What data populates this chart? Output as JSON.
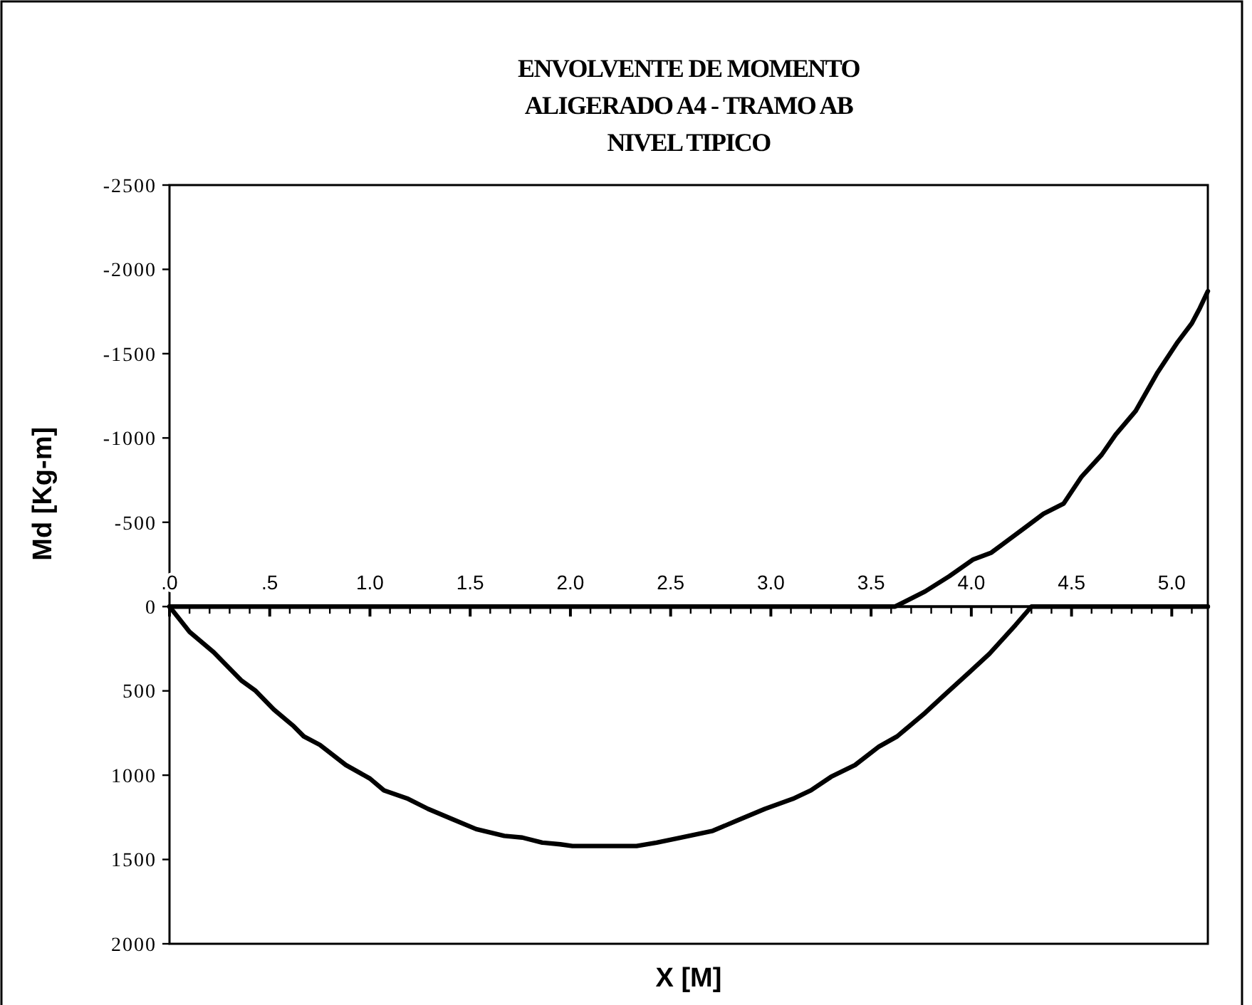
{
  "chart_data": {
    "type": "line",
    "title": "ENVOLVENTE DE MOMENTO\nALIGERADO A4 - TRAMO AB\nNIVEL TIPICO",
    "xlabel": "X [M]",
    "ylabel": "Md [Kg-m]",
    "xlim": [
      0,
      5.18
    ],
    "ylim": [
      2000,
      -2500
    ],
    "xticks": [
      {
        "value": 0,
        "label": ".0"
      },
      {
        "value": 0.1,
        "label": null
      },
      {
        "value": 0.2,
        "label": null
      },
      {
        "value": 0.3,
        "label": null
      },
      {
        "value": 0.4,
        "label": null
      },
      {
        "value": 0.5,
        "label": ".5"
      },
      {
        "value": 0.6,
        "label": null
      },
      {
        "value": 0.7,
        "label": null
      },
      {
        "value": 0.8,
        "label": null
      },
      {
        "value": 0.9,
        "label": null
      },
      {
        "value": 1,
        "label": "1.0"
      },
      {
        "value": 1.1,
        "label": null
      },
      {
        "value": 1.2,
        "label": null
      },
      {
        "value": 1.3,
        "label": null
      },
      {
        "value": 1.4,
        "label": null
      },
      {
        "value": 1.5,
        "label": "1.5"
      },
      {
        "value": 1.6,
        "label": null
      },
      {
        "value": 1.7,
        "label": null
      },
      {
        "value": 1.8,
        "label": null
      },
      {
        "value": 1.9,
        "label": null
      },
      {
        "value": 2,
        "label": "2.0"
      },
      {
        "value": 2.1,
        "label": null
      },
      {
        "value": 2.2,
        "label": null
      },
      {
        "value": 2.3,
        "label": null
      },
      {
        "value": 2.4,
        "label": null
      },
      {
        "value": 2.5,
        "label": "2.5"
      },
      {
        "value": 2.6,
        "label": null
      },
      {
        "value": 2.7,
        "label": null
      },
      {
        "value": 2.8,
        "label": null
      },
      {
        "value": 2.9,
        "label": null
      },
      {
        "value": 3,
        "label": "3.0"
      },
      {
        "value": 3.1,
        "label": null
      },
      {
        "value": 3.2,
        "label": null
      },
      {
        "value": 3.3,
        "label": null
      },
      {
        "value": 3.4,
        "label": null
      },
      {
        "value": 3.5,
        "label": "3.5"
      },
      {
        "value": 3.6,
        "label": null
      },
      {
        "value": 3.7,
        "label": null
      },
      {
        "value": 3.8,
        "label": null
      },
      {
        "value": 3.9,
        "label": null
      },
      {
        "value": 4,
        "label": "4.0"
      },
      {
        "value": 4.1,
        "label": null
      },
      {
        "value": 4.2,
        "label": null
      },
      {
        "value": 4.3,
        "label": null
      },
      {
        "value": 4.4,
        "label": null
      },
      {
        "value": 4.5,
        "label": "4.5"
      },
      {
        "value": 4.6,
        "label": null
      },
      {
        "value": 4.7,
        "label": null
      },
      {
        "value": 4.8,
        "label": null
      },
      {
        "value": 4.9,
        "label": null
      },
      {
        "value": 5,
        "label": "5.0"
      },
      {
        "value": 5.1,
        "label": null
      }
    ],
    "yticks": [
      -2500,
      -2000,
      -1500,
      -1000,
      -500,
      0,
      500,
      1000,
      1500,
      2000
    ],
    "grid": false,
    "marker": "none",
    "line_style": "solid",
    "series": [
      {
        "color": "#000000",
        "x": [
          0,
          0.1,
          0.22,
          0.36,
          0.43,
          0.52,
          0.62,
          0.67,
          0.75,
          0.88,
          1.0,
          1.07,
          1.19,
          1.29,
          1.41,
          1.53,
          1.67,
          1.76,
          1.86,
          1.95,
          2.01,
          2.33,
          2.43,
          2.55,
          2.71,
          2.83,
          2.97,
          3.11,
          3.2,
          3.3,
          3.42,
          3.54,
          3.63,
          3.77,
          3.87,
          3.99,
          4.09,
          4.22,
          4.3,
          5.18
        ],
        "values": [
          0,
          150,
          270,
          440,
          500,
          610,
          710,
          770,
          820,
          940,
          1020,
          1090,
          1140,
          1200,
          1260,
          1320,
          1360,
          1370,
          1400,
          1410,
          1420,
          1420,
          1400,
          1370,
          1330,
          1270,
          1200,
          1140,
          1090,
          1010,
          940,
          830,
          770,
          630,
          520,
          390,
          280,
          110,
          0,
          0
        ]
      },
      {
        "color": "#000000",
        "x": [
          0,
          3.62,
          3.77,
          3.89,
          4.01,
          4.1,
          4.27,
          4.36,
          4.46,
          4.55,
          4.65,
          4.72,
          4.82,
          4.93,
          5.03,
          5.1,
          5.14,
          5.18
        ],
        "values": [
          0,
          0,
          -90,
          -180,
          -280,
          -320,
          -470,
          -550,
          -610,
          -770,
          -900,
          -1020,
          -1160,
          -1390,
          -1570,
          -1680,
          -1770,
          -1870
        ]
      }
    ]
  }
}
